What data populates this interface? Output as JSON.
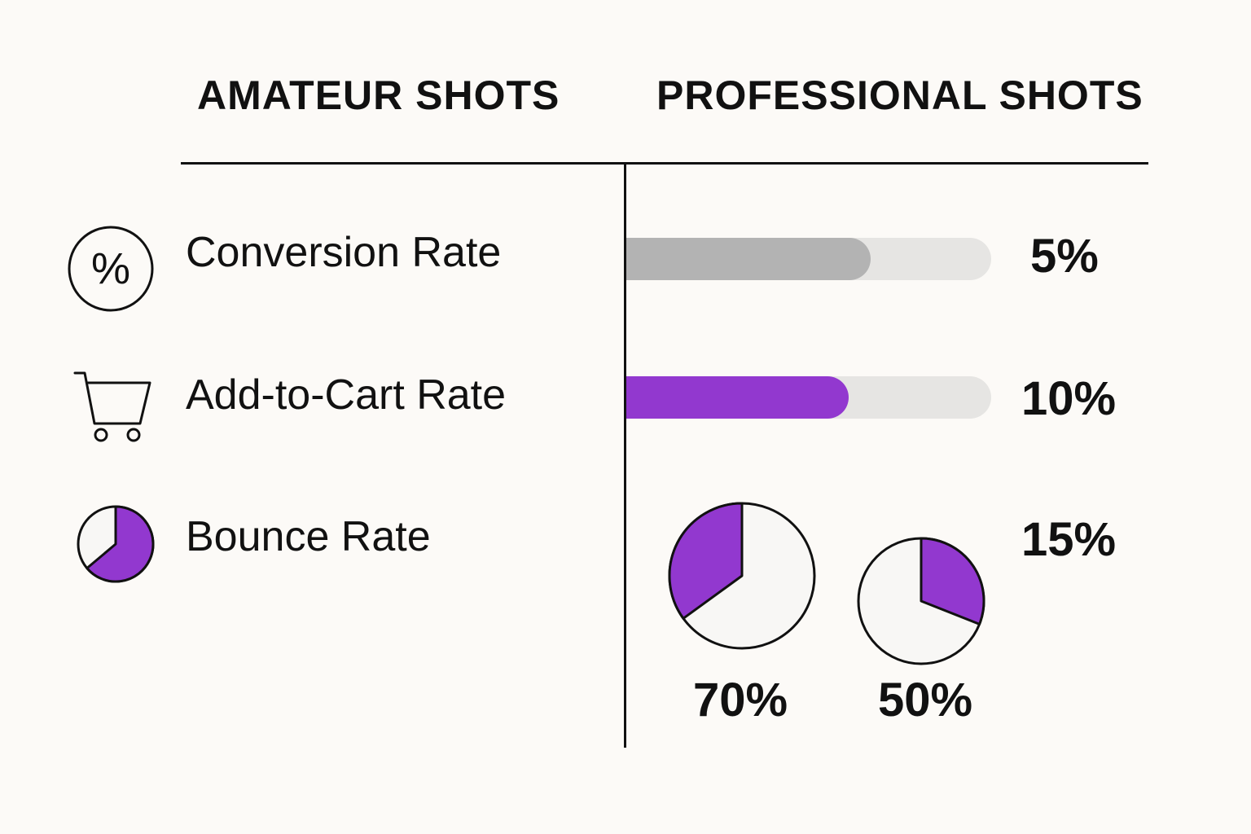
{
  "header": {
    "amateur": "AMATEUR SHOTS",
    "professional": "PROFESSIONAL SHOTS"
  },
  "colors": {
    "accent": "#9238cf",
    "neutral_bar": "#b3b3b3",
    "track": "#e6e5e3",
    "background": "#fcfaf7"
  },
  "metrics": [
    {
      "label": "Conversion Rate",
      "icon": "percent-icon"
    },
    {
      "label": "Add-to-Cart Rate",
      "icon": "cart-icon"
    },
    {
      "label": "Bounce Rate",
      "icon": "pie-chart-icon"
    }
  ],
  "chart_data": {
    "type": "bar",
    "categories": [
      "Conversion Rate",
      "Add-to-Cart Rate",
      "Bounce Rate"
    ],
    "bars": [
      {
        "metric": "Conversion Rate",
        "label": "5%",
        "fill_fraction": 0.67
      },
      {
        "metric": "Add-to-Cart Rate",
        "label": "10%",
        "fill_fraction": 0.61
      }
    ],
    "bounce_value_label": "15%",
    "pies": [
      {
        "label": "70%",
        "filled_fraction": 0.35
      },
      {
        "label": "50%",
        "filled_fraction": 0.31
      }
    ]
  }
}
